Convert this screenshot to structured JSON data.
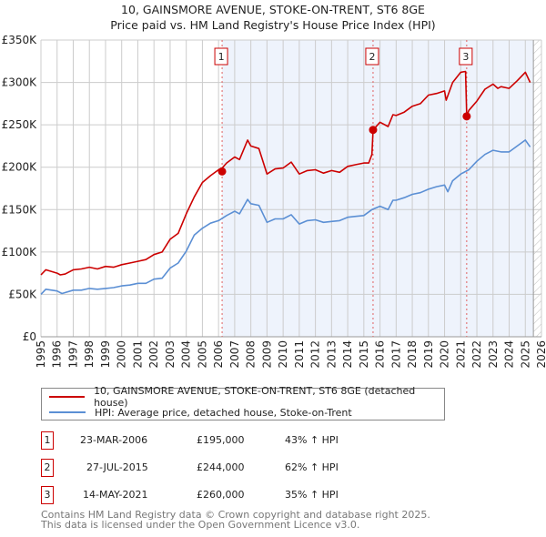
{
  "title_line1": "10, GAINSMORE AVENUE, STOKE-ON-TRENT, ST6 8GE",
  "title_line2": "Price paid vs. HM Land Registry's House Price Index (HPI)",
  "legend": {
    "property": "10, GAINSMORE AVENUE, STOKE-ON-TRENT, ST6 8GE (detached house)",
    "hpi": "HPI: Average price, detached house, Stoke-on-Trent"
  },
  "sales": [
    {
      "n": "1",
      "date": "23-MAR-2006",
      "price": "£195,000",
      "delta": "43% ↑ HPI"
    },
    {
      "n": "2",
      "date": "27-JUL-2015",
      "price": "£244,000",
      "delta": "62% ↑ HPI"
    },
    {
      "n": "3",
      "date": "14-MAY-2021",
      "price": "£260,000",
      "delta": "35% ↑ HPI"
    }
  ],
  "footer": {
    "line1": "Contains HM Land Registry data © Crown copyright and database right 2025.",
    "line2": "This data is licensed under the Open Government Licence v3.0."
  },
  "colors": {
    "property": "#cc0000",
    "hpi": "#5b8fd4",
    "shade": "#eef3fc",
    "grid": "#cccccc"
  },
  "chart_data": {
    "type": "line",
    "title": "10, GAINSMORE AVENUE, STOKE-ON-TRENT, ST6 8GE — Price paid vs. HM Land Registry's House Price Index (HPI)",
    "xlim": [
      1995,
      2026
    ],
    "ylim": [
      0,
      350000
    ],
    "x_ticks": [
      "1995",
      "1996",
      "1997",
      "1998",
      "1999",
      "2000",
      "2001",
      "2002",
      "2003",
      "2004",
      "2005",
      "2006",
      "2007",
      "2008",
      "2009",
      "2010",
      "2011",
      "2012",
      "2013",
      "2014",
      "2015",
      "2016",
      "2017",
      "2018",
      "2019",
      "2020",
      "2021",
      "2022",
      "2023",
      "2024",
      "2025",
      "2026"
    ],
    "y_ticks": [
      {
        "v": 0,
        "label": "£0"
      },
      {
        "v": 50000,
        "label": "£50K"
      },
      {
        "v": 100000,
        "label": "£100K"
      },
      {
        "v": 150000,
        "label": "£150K"
      },
      {
        "v": 200000,
        "label": "£200K"
      },
      {
        "v": 250000,
        "label": "£250K"
      },
      {
        "v": 300000,
        "label": "£300K"
      },
      {
        "v": 350000,
        "label": "£350K"
      }
    ],
    "grid": true,
    "legend_placement": "below",
    "shaded_from": 2006.22,
    "projection_from": 2025.5,
    "sale_markers": [
      {
        "label": "1",
        "x": 2006.22,
        "y": 195000
      },
      {
        "label": "2",
        "x": 2015.57,
        "y": 244000
      },
      {
        "label": "3",
        "x": 2021.37,
        "y": 260000
      }
    ],
    "series": [
      {
        "name": "10, GAINSMORE AVENUE, STOKE-ON-TRENT, ST6 8GE (detached house)",
        "color": "#cc0000",
        "x": [
          1995,
          1995.3,
          1996,
          1996.2,
          1996.5,
          1997,
          1997.5,
          1998,
          1998.5,
          1999,
          1999.5,
          2000,
          2000.5,
          2001,
          2001.5,
          2002,
          2002.5,
          2003,
          2003.5,
          2004,
          2004.5,
          2005,
          2005.5,
          2006,
          2006.22,
          2006.5,
          2007,
          2007.3,
          2007.8,
          2008,
          2008.5,
          2009,
          2009.5,
          2010,
          2010.5,
          2011,
          2011.5,
          2012,
          2012.5,
          2013,
          2013.5,
          2014,
          2014.5,
          2015,
          2015.3,
          2015.5,
          2015.57,
          2016,
          2016.5,
          2016.8,
          2017,
          2017.5,
          2018,
          2018.5,
          2019,
          2019.5,
          2020,
          2020.1,
          2020.5,
          2021,
          2021.3,
          2021.37,
          2021.5,
          2022,
          2022.5,
          2023,
          2023.3,
          2023.5,
          2024,
          2024.5,
          2025,
          2025.3
        ],
        "y": [
          73000,
          79000,
          75000,
          73000,
          74000,
          79000,
          80000,
          82000,
          80000,
          83000,
          82000,
          85000,
          87000,
          89000,
          91000,
          97000,
          100000,
          115000,
          122000,
          145000,
          165000,
          182000,
          190000,
          197000,
          199000,
          205000,
          212000,
          209000,
          232000,
          225000,
          222000,
          192000,
          198000,
          199000,
          206000,
          192000,
          196000,
          197000,
          193000,
          196000,
          194000,
          201000,
          203000,
          205000,
          205000,
          215000,
          244000,
          253000,
          248000,
          262000,
          261000,
          265000,
          272000,
          275000,
          285000,
          287000,
          290000,
          279000,
          300000,
          312000,
          313000,
          260000,
          267000,
          278000,
          292000,
          298000,
          293000,
          295000,
          293000,
          302000,
          312000,
          300000
        ]
      },
      {
        "name": "HPI: Average price, detached house, Stoke-on-Trent",
        "color": "#5b8fd4",
        "x": [
          1995,
          1995.3,
          1996,
          1996.3,
          1997,
          1997.5,
          1998,
          1998.5,
          1999,
          1999.5,
          2000,
          2000.5,
          2001,
          2001.5,
          2002,
          2002.5,
          2003,
          2003.5,
          2004,
          2004.5,
          2005,
          2005.5,
          2006,
          2006.5,
          2007,
          2007.3,
          2007.8,
          2008,
          2008.5,
          2009,
          2009.5,
          2010,
          2010.5,
          2011,
          2011.5,
          2012,
          2012.5,
          2013,
          2013.5,
          2014,
          2014.5,
          2015,
          2015.5,
          2016,
          2016.5,
          2016.8,
          2017,
          2017.5,
          2018,
          2018.5,
          2019,
          2019.5,
          2020,
          2020.2,
          2020.5,
          2021,
          2021.5,
          2022,
          2022.5,
          2023,
          2023.5,
          2024,
          2024.5,
          2025,
          2025.3
        ],
        "y": [
          50000,
          56000,
          54000,
          51000,
          55000,
          55000,
          57000,
          56000,
          57000,
          58000,
          60000,
          61000,
          63000,
          63000,
          68000,
          69000,
          81000,
          87000,
          101000,
          120000,
          128000,
          134000,
          137000,
          143000,
          148000,
          145000,
          162000,
          157000,
          155000,
          135000,
          139000,
          139000,
          144000,
          133000,
          137000,
          138000,
          135000,
          136000,
          137000,
          141000,
          142000,
          143000,
          150000,
          154000,
          150000,
          161000,
          161000,
          164000,
          168000,
          170000,
          174000,
          177000,
          179000,
          171000,
          184000,
          192000,
          197000,
          207000,
          215000,
          220000,
          218000,
          218000,
          225000,
          232000,
          224000
        ]
      }
    ]
  }
}
